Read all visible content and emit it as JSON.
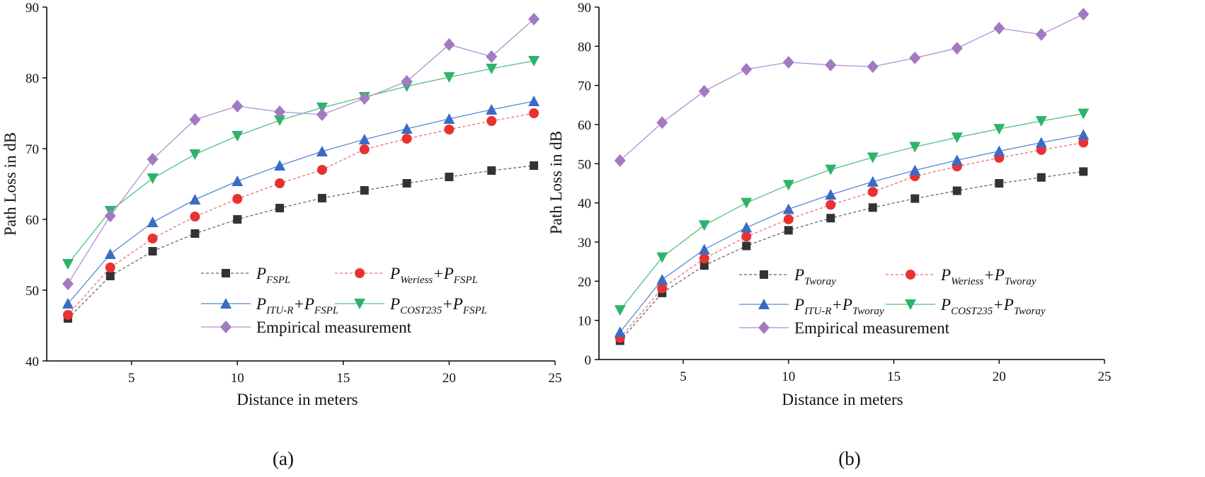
{
  "chart_data": [
    {
      "type": "line",
      "panel_label": "(a)",
      "xlabel": "Distance in meters",
      "ylabel": "Path Loss in dB",
      "xlim": [
        1,
        25
      ],
      "ylim": [
        40,
        90
      ],
      "xticks": [
        5,
        10,
        15,
        20,
        25
      ],
      "yticks": [
        40,
        50,
        60,
        70,
        80,
        90
      ],
      "x": [
        2,
        4,
        6,
        8,
        10,
        12,
        14,
        16,
        18,
        20,
        22,
        24
      ],
      "legend_position": "bottom-right",
      "series": [
        {
          "key": "fspl",
          "legend_parts": [
            [
              "P",
              "main"
            ],
            [
              "FSPL",
              "sub"
            ]
          ],
          "color": "#333333",
          "line_color": "#666666",
          "marker": "square",
          "dash": true,
          "values": [
            46.0,
            52.0,
            55.5,
            58.0,
            60.0,
            61.6,
            63.0,
            64.1,
            65.1,
            66.0,
            66.9,
            67.6
          ]
        },
        {
          "key": "weriess_fspl",
          "legend_parts": [
            [
              "P",
              "main"
            ],
            [
              "Weriess",
              "sub"
            ],
            [
              "+P",
              "main"
            ],
            [
              "FSPL",
              "sub"
            ]
          ],
          "color": "#e83232",
          "line_color": "#e87070",
          "marker": "circle",
          "dash": true,
          "values": [
            46.5,
            53.2,
            57.3,
            60.4,
            62.9,
            65.1,
            67.0,
            69.9,
            71.4,
            72.7,
            73.9,
            75.0
          ]
        },
        {
          "key": "itur_fspl",
          "legend_parts": [
            [
              "P",
              "main"
            ],
            [
              "ITU-R",
              "sub"
            ],
            [
              "+P",
              "main"
            ],
            [
              "FSPL",
              "sub"
            ]
          ],
          "color": "#3a6cc4",
          "line_color": "#5a86d4",
          "marker": "triangle-up",
          "dash": false,
          "values": [
            48.1,
            55.1,
            59.6,
            62.8,
            65.4,
            67.6,
            69.6,
            71.3,
            72.8,
            74.2,
            75.5,
            76.7
          ]
        },
        {
          "key": "cost235_fspl",
          "legend_parts": [
            [
              "P",
              "main"
            ],
            [
              "COST235",
              "sub"
            ],
            [
              "+P",
              "main"
            ],
            [
              "FSPL",
              "sub"
            ]
          ],
          "color": "#2fb36a",
          "line_color": "#4fc282",
          "marker": "triangle-down",
          "dash": false,
          "values": [
            53.7,
            61.2,
            65.8,
            69.2,
            71.8,
            74.0,
            75.8,
            77.3,
            78.8,
            80.1,
            81.3,
            82.4
          ]
        },
        {
          "key": "empirical",
          "legend_parts": [
            [
              "Empirical measurement",
              "plain"
            ]
          ],
          "color": "#a27ac2",
          "line_color": "#b48ed2",
          "marker": "diamond",
          "dash": false,
          "values": [
            50.9,
            60.5,
            68.5,
            74.1,
            76.0,
            75.2,
            74.8,
            77.1,
            79.5,
            84.7,
            83.0,
            88.3
          ]
        }
      ]
    },
    {
      "type": "line",
      "panel_label": "(b)",
      "xlabel": "Distance in meters",
      "ylabel": "Path Loss in dB",
      "xlim": [
        1,
        25
      ],
      "ylim": [
        0,
        90
      ],
      "xticks": [
        5,
        10,
        15,
        20,
        25
      ],
      "yticks": [
        0,
        10,
        20,
        30,
        40,
        50,
        60,
        70,
        80,
        90
      ],
      "x": [
        2,
        4,
        6,
        8,
        10,
        12,
        14,
        16,
        18,
        20,
        22,
        24
      ],
      "legend_position": "bottom-right",
      "series": [
        {
          "key": "tworay",
          "legend_parts": [
            [
              "P",
              "main"
            ],
            [
              "Tworay",
              "sub"
            ]
          ],
          "color": "#333333",
          "line_color": "#666666",
          "marker": "square",
          "dash": true,
          "values": [
            4.8,
            17.0,
            24.0,
            29.0,
            33.0,
            36.1,
            38.8,
            41.1,
            43.1,
            45.0,
            46.5,
            48.0
          ]
        },
        {
          "key": "weriess_tworay",
          "legend_parts": [
            [
              "P",
              "main"
            ],
            [
              "Weriess",
              "sub"
            ],
            [
              "+P",
              "main"
            ],
            [
              "Tworay",
              "sub"
            ]
          ],
          "color": "#e83232",
          "line_color": "#e87070",
          "marker": "circle",
          "dash": true,
          "values": [
            5.5,
            18.2,
            25.8,
            31.4,
            35.8,
            39.5,
            42.8,
            46.8,
            49.3,
            51.5,
            53.5,
            55.4
          ]
        },
        {
          "key": "itur_tworay",
          "legend_parts": [
            [
              "P",
              "main"
            ],
            [
              "ITU-R",
              "sub"
            ],
            [
              "+P",
              "main"
            ],
            [
              "Tworay",
              "sub"
            ]
          ],
          "color": "#3a6cc4",
          "line_color": "#5a86d4",
          "marker": "triangle-up",
          "dash": false,
          "values": [
            7.0,
            20.4,
            28.1,
            33.7,
            38.4,
            42.1,
            45.4,
            48.3,
            50.9,
            53.2,
            55.4,
            57.4
          ]
        },
        {
          "key": "cost235_tworay",
          "legend_parts": [
            [
              "P",
              "main"
            ],
            [
              "COST235",
              "sub"
            ],
            [
              "+P",
              "main"
            ],
            [
              "Tworay",
              "sub"
            ]
          ],
          "color": "#2fb36a",
          "line_color": "#4fc282",
          "marker": "triangle-down",
          "dash": false,
          "values": [
            12.6,
            26.1,
            34.3,
            40.0,
            44.6,
            48.5,
            51.6,
            54.3,
            56.7,
            58.9,
            60.9,
            62.8
          ]
        },
        {
          "key": "empirical",
          "legend_parts": [
            [
              "Empirical measurement",
              "plain"
            ]
          ],
          "color": "#a27ac2",
          "line_color": "#b48ed2",
          "marker": "diamond",
          "dash": false,
          "values": [
            50.8,
            60.5,
            68.5,
            74.1,
            75.9,
            75.2,
            74.8,
            77.0,
            79.5,
            84.6,
            83.0,
            88.2
          ]
        }
      ]
    }
  ]
}
